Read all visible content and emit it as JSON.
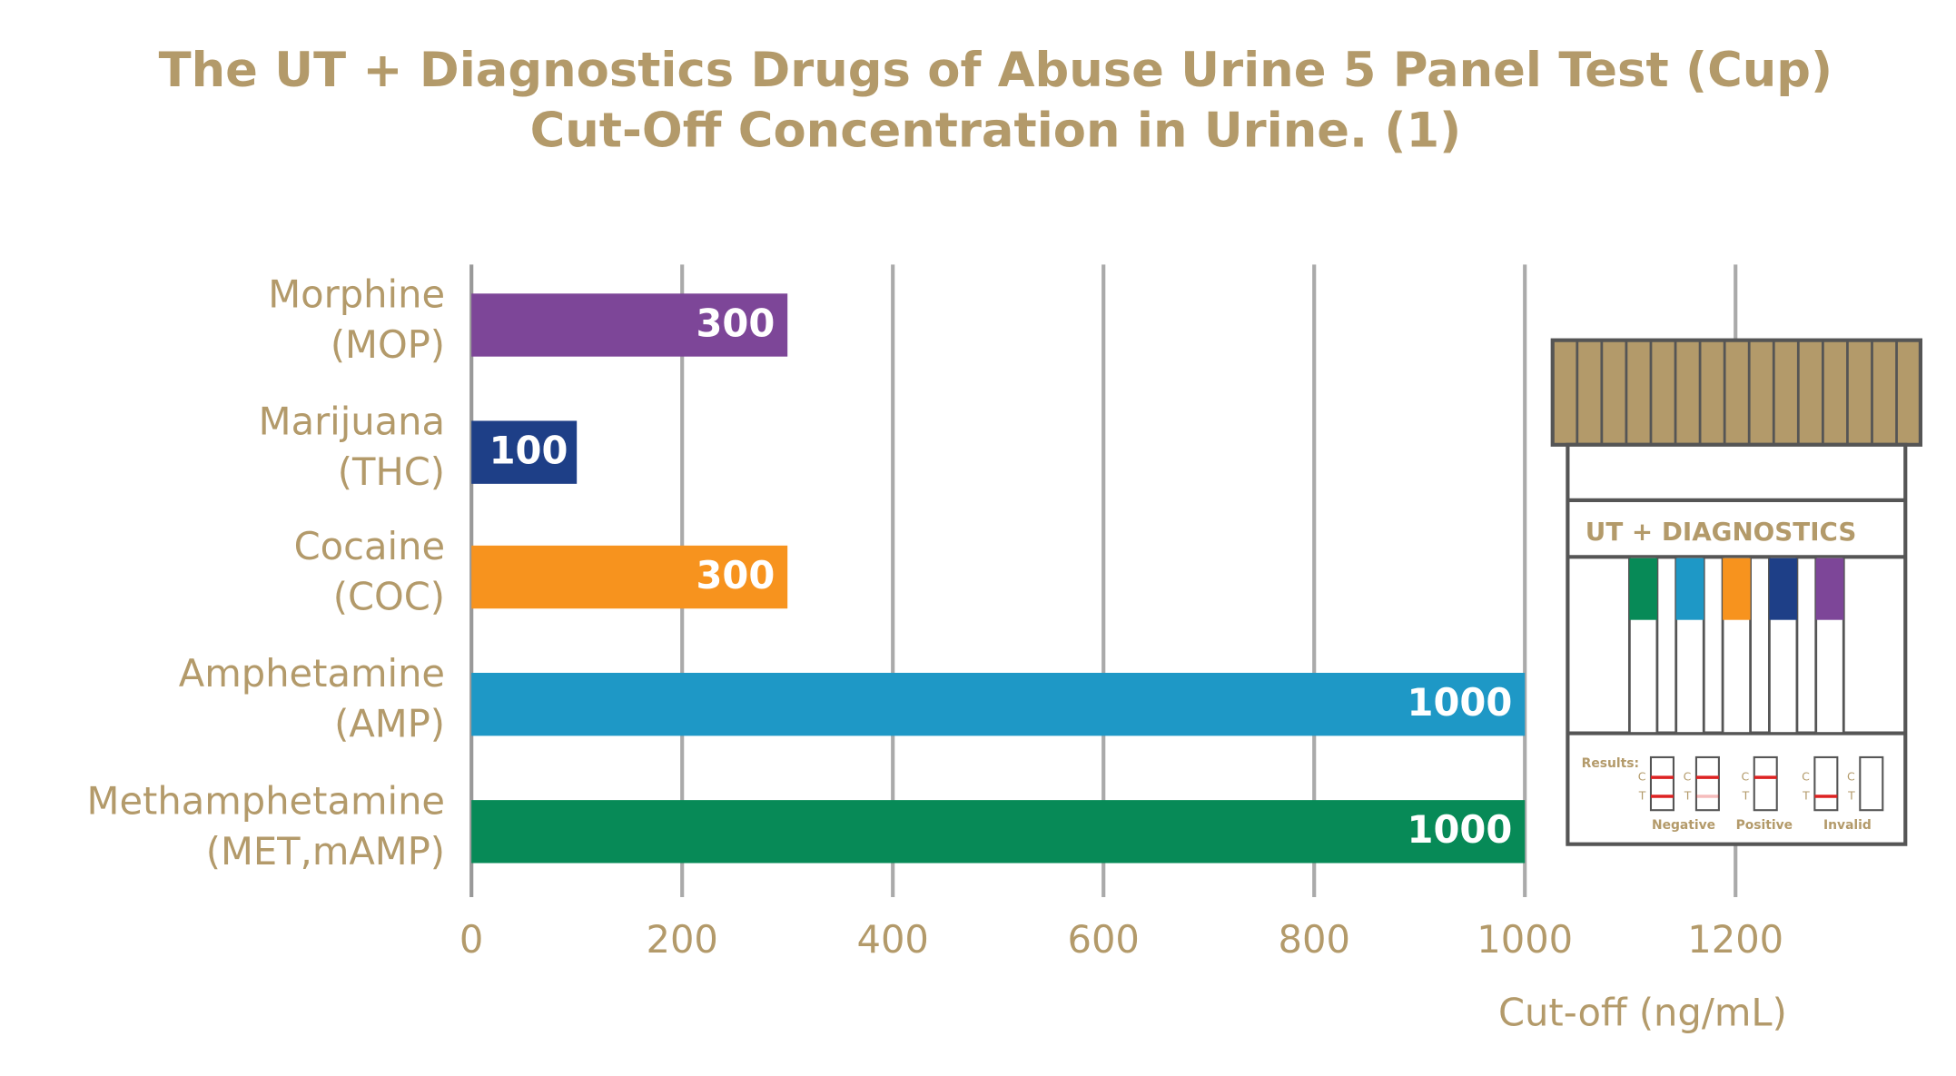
{
  "chart_data": {
    "type": "hbar",
    "title": [
      "The UT + Diagnostics Drugs of Abuse Urine 5 Panel Test (Cup)",
      "Cut-Off Concentration in Urine. (1)"
    ],
    "categories": [
      [
        "Morphine",
        "(MOP)"
      ],
      [
        "Marijuana",
        "(THC)"
      ],
      [
        "Cocaine",
        "(COC)"
      ],
      [
        "Amphetamine",
        "(AMP)"
      ],
      [
        "Methamphetamine",
        "(MET,mAMP)"
      ]
    ],
    "values": [
      300,
      100,
      300,
      1000,
      1000
    ],
    "colors": [
      "#7d4698",
      "#1e3f87",
      "#f7931e",
      "#1e98c6",
      "#078a57"
    ],
    "xlim": [
      0,
      1200
    ],
    "xticks": [
      0,
      200,
      400,
      600,
      800,
      1000,
      1200
    ],
    "x_label": "Cut-off (ng/mL)",
    "grid": true,
    "illustration": {
      "brand": "UT + DIAGNOSTICS",
      "results_label": "Results:",
      "strip_letters": [
        "C",
        "T"
      ],
      "captions": [
        "Negative",
        "Positive",
        "Invalid"
      ]
    }
  }
}
